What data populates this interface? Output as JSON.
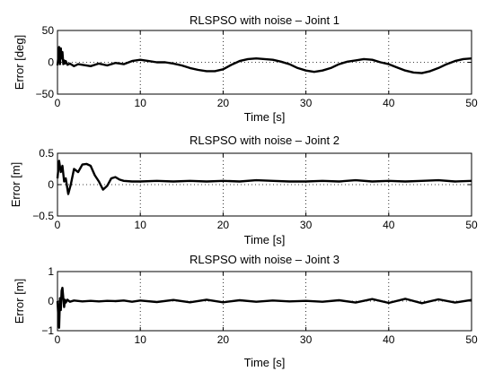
{
  "chart_data": [
    {
      "type": "line",
      "title": "RLSPSO with noise – Joint 1",
      "xlabel": "Time [s]",
      "ylabel": "Error [deg]",
      "xlim": [
        0,
        50
      ],
      "ylim": [
        -50,
        50
      ],
      "xticks": [
        0,
        10,
        20,
        30,
        40,
        50
      ],
      "yticks": [
        -50,
        0,
        50
      ],
      "xticklabels": [
        "0",
        "10",
        "20",
        "30",
        "40",
        "50"
      ],
      "yticklabels": [
        "−50",
        "0",
        "50"
      ],
      "grid": true,
      "series": [
        {
          "x": [
            0,
            0.1,
            0.2,
            0.3,
            0.4,
            0.5,
            0.6,
            0.7,
            0.8,
            0.9,
            1.0,
            1.2,
            1.5,
            2,
            2.5,
            3,
            4,
            5,
            6,
            7,
            8,
            9,
            10,
            11,
            12,
            13,
            14,
            15,
            16,
            17,
            18,
            19,
            20,
            21,
            22,
            23,
            24,
            25,
            26,
            27,
            28,
            29,
            30,
            31,
            32,
            33,
            34,
            35,
            36,
            37,
            38,
            39,
            40,
            41,
            42,
            43,
            44,
            45,
            46,
            47,
            48,
            49,
            50
          ],
          "y": [
            -5,
            8,
            24,
            -3,
            22,
            6,
            16,
            -3,
            3,
            -2,
            2,
            -4,
            -2,
            -6,
            -3,
            -4,
            -6,
            -2,
            -5,
            -1,
            -3,
            2,
            4,
            2,
            0,
            0,
            -2,
            -5,
            -9,
            -12,
            -14,
            -14,
            -11,
            -4,
            2,
            5,
            6,
            5,
            4,
            1,
            -3,
            -9,
            -13,
            -15,
            -13,
            -9,
            -3,
            1,
            3,
            5,
            4,
            0,
            -3,
            -8,
            -13,
            -16,
            -17,
            -14,
            -9,
            -3,
            2,
            5,
            6
          ]
        }
      ]
    },
    {
      "type": "line",
      "title": "RLSPSO with noise – Joint 2",
      "xlabel": "Time [s]",
      "ylabel": "Error [m]",
      "xlim": [
        0,
        50
      ],
      "ylim": [
        -0.5,
        0.5
      ],
      "xticks": [
        0,
        10,
        20,
        30,
        40,
        50
      ],
      "yticks": [
        -0.5,
        0,
        0.5
      ],
      "xticklabels": [
        "0",
        "10",
        "20",
        "30",
        "40",
        "50"
      ],
      "yticklabels": [
        "−0.5",
        "0",
        "0.5"
      ],
      "grid": true,
      "series": [
        {
          "x": [
            0,
            0.2,
            0.4,
            0.6,
            0.8,
            1.0,
            1.3,
            1.6,
            2.0,
            2.5,
            3.0,
            3.5,
            4.0,
            4.5,
            5.0,
            5.5,
            6.0,
            6.5,
            7.0,
            7.5,
            8.0,
            9,
            10,
            12,
            14,
            16,
            18,
            20,
            22,
            24,
            26,
            28,
            30,
            32,
            34,
            36,
            38,
            40,
            42,
            44,
            46,
            48,
            50
          ],
          "y": [
            0.1,
            0.38,
            0.2,
            0.3,
            0.05,
            0.1,
            -0.15,
            0.0,
            0.25,
            0.2,
            0.32,
            0.33,
            0.3,
            0.15,
            0.05,
            -0.08,
            -0.02,
            0.1,
            0.12,
            0.08,
            0.06,
            0.05,
            0.05,
            0.06,
            0.05,
            0.06,
            0.05,
            0.06,
            0.05,
            0.07,
            0.06,
            0.05,
            0.05,
            0.06,
            0.05,
            0.07,
            0.05,
            0.06,
            0.05,
            0.06,
            0.07,
            0.05,
            0.06
          ]
        }
      ]
    },
    {
      "type": "line",
      "title": "RLSPSO with noise – Joint 3",
      "xlabel": "Time [s]",
      "ylabel": "Error [m]",
      "xlim": [
        0,
        50
      ],
      "ylim": [
        -1,
        1
      ],
      "xticks": [
        0,
        10,
        20,
        30,
        40,
        50
      ],
      "yticks": [
        -1,
        0,
        1
      ],
      "xticklabels": [
        "0",
        "10",
        "20",
        "30",
        "40",
        "50"
      ],
      "yticklabels": [
        "−1",
        "0",
        "1"
      ],
      "grid": true,
      "series": [
        {
          "x": [
            0,
            0.1,
            0.2,
            0.3,
            0.4,
            0.5,
            0.6,
            0.7,
            0.8,
            0.9,
            1.0,
            1.2,
            1.5,
            2.0,
            3,
            4,
            5,
            6,
            7,
            8,
            9,
            10,
            12,
            14,
            16,
            18,
            20,
            22,
            24,
            26,
            28,
            30,
            32,
            34,
            36,
            38,
            40,
            42,
            44,
            46,
            48,
            50
          ],
          "y": [
            0.0,
            -0.5,
            -0.9,
            0.1,
            -0.3,
            0.35,
            0.45,
            0.1,
            -0.2,
            0.05,
            -0.05,
            0.05,
            -0.02,
            0.02,
            -0.01,
            0.01,
            -0.01,
            0.01,
            0.0,
            0.02,
            -0.02,
            0.02,
            -0.03,
            0.04,
            -0.04,
            0.05,
            -0.04,
            0.03,
            -0.02,
            0.02,
            -0.01,
            0.01,
            -0.02,
            0.03,
            -0.05,
            0.07,
            -0.06,
            0.08,
            -0.07,
            0.06,
            -0.05,
            0.04
          ]
        }
      ]
    }
  ]
}
